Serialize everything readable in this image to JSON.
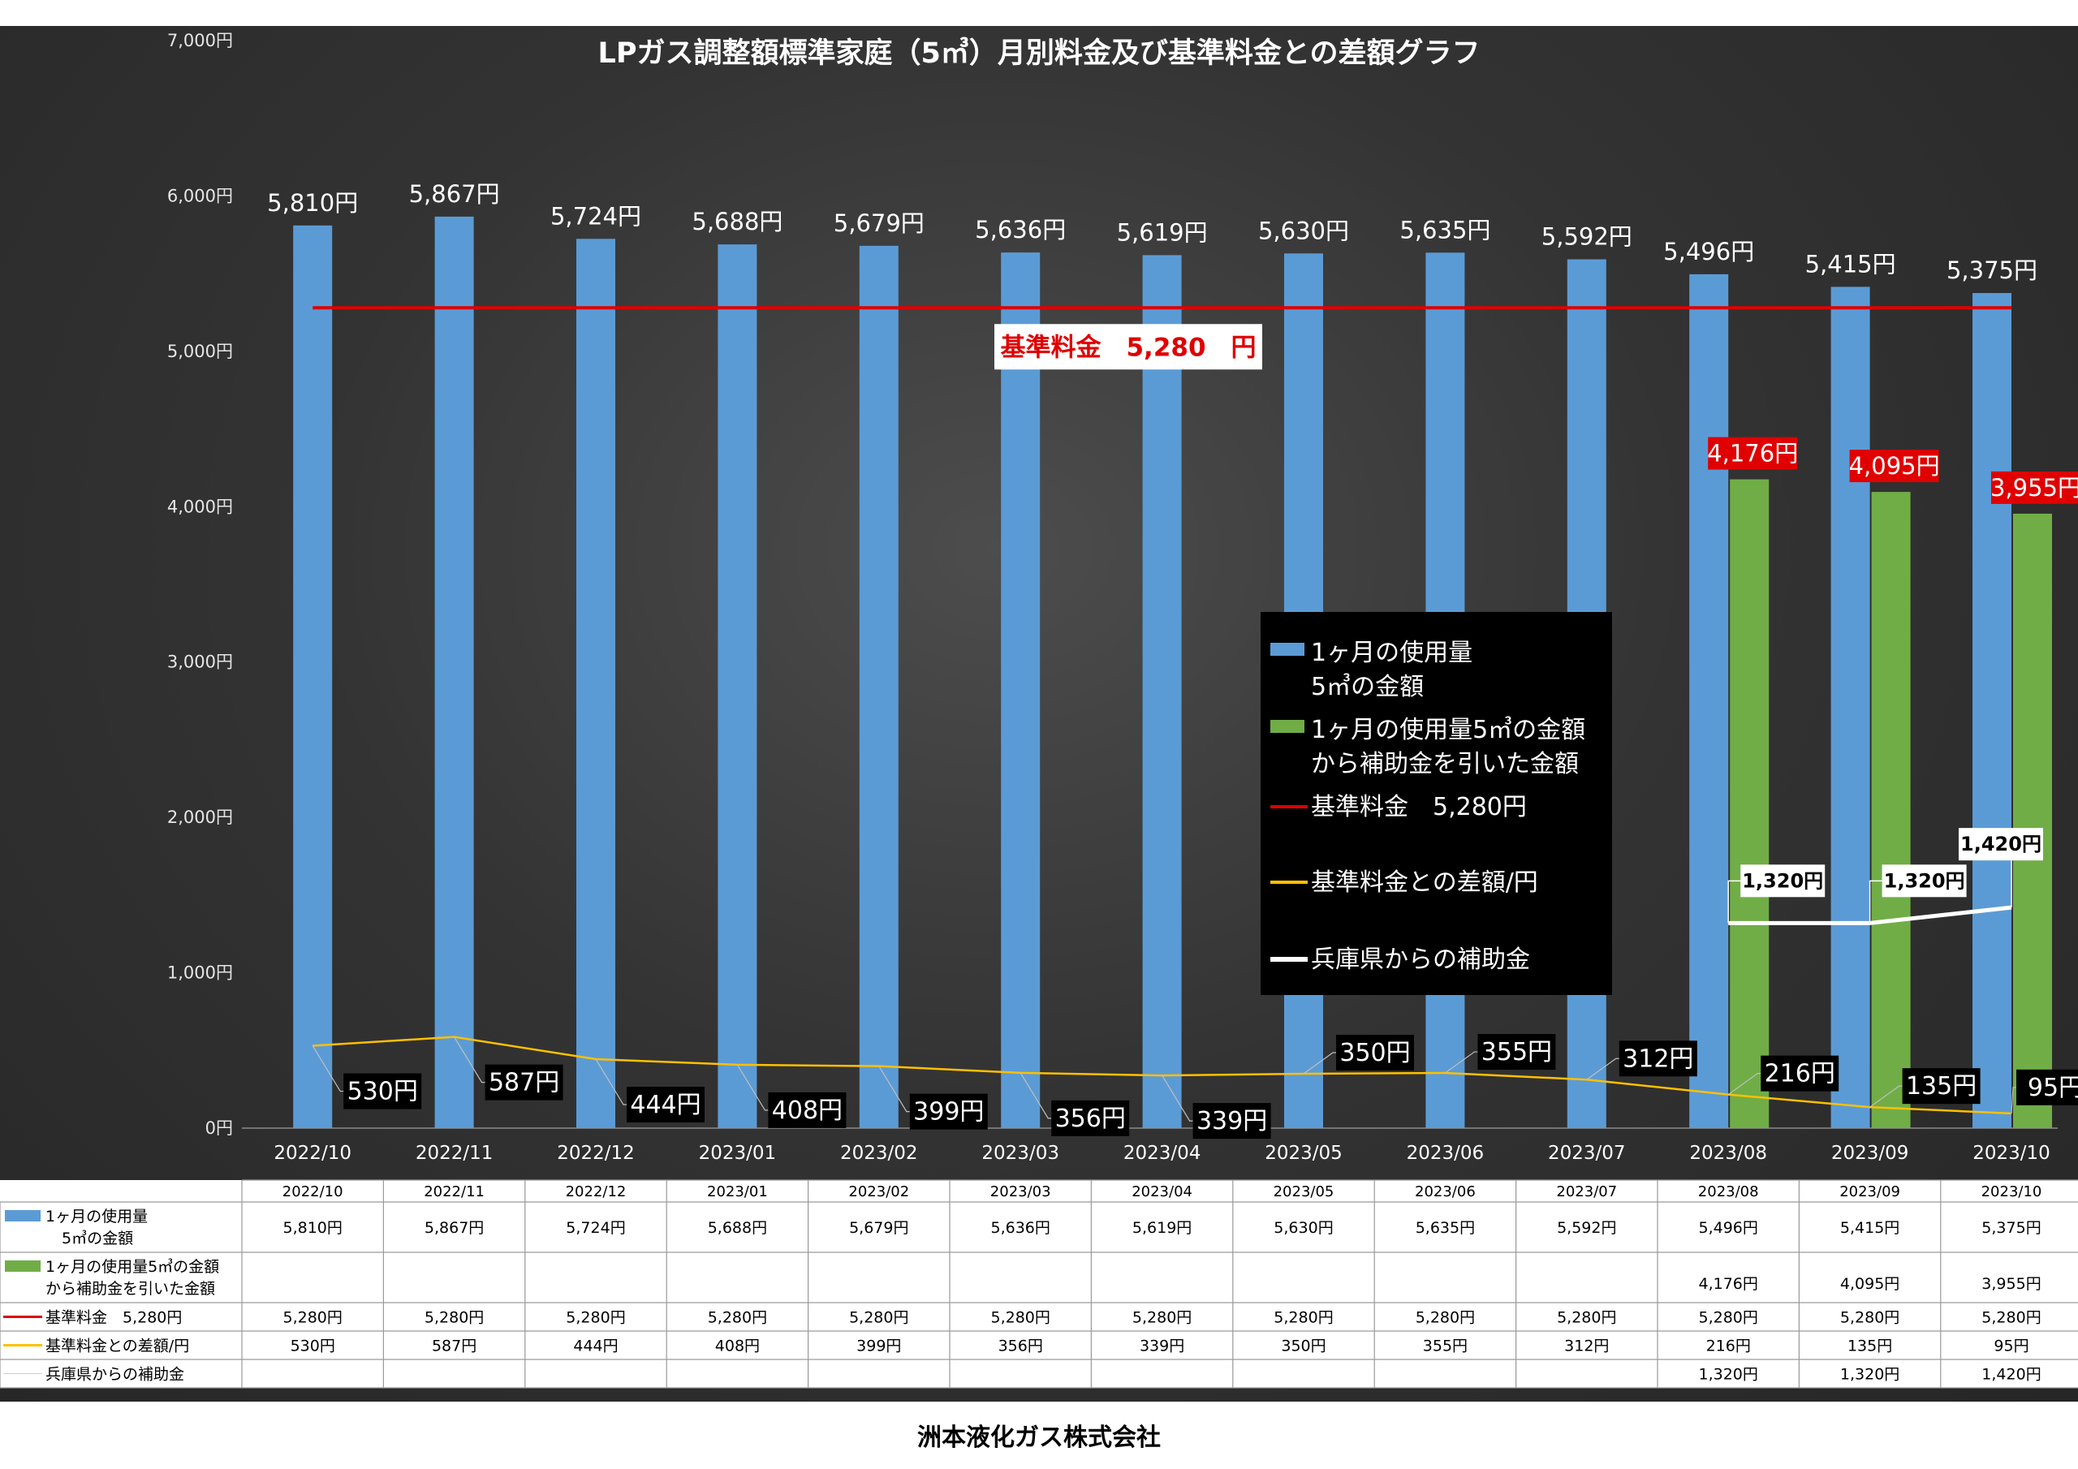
{
  "title": "LPガス調整額標準家庭（5㎥）月別料金及び基準料金との差額グラフ",
  "company": "洲本液化ガス株式会社",
  "chart_data": {
    "type": "bar",
    "categories": [
      "2022/10",
      "2022/11",
      "2022/12",
      "2023/01",
      "2023/02",
      "2023/03",
      "2023/04",
      "2023/05",
      "2023/06",
      "2023/07",
      "2023/08",
      "2023/09",
      "2023/10"
    ],
    "ylim": [
      0,
      7000
    ],
    "yticks": [
      "0円",
      "1,000円",
      "2,000円",
      "3,000円",
      "4,000円",
      "5,000円",
      "6,000円",
      "7,000円"
    ],
    "series": [
      {
        "key": "usage",
        "name": "1ヶ月の使用量\n5㎥の金額",
        "type": "bar",
        "color": "#5b9bd5",
        "values": [
          5810,
          5867,
          5724,
          5688,
          5679,
          5636,
          5619,
          5630,
          5635,
          5592,
          5496,
          5415,
          5375
        ],
        "labels": [
          "5,810円",
          "5,867円",
          "5,724円",
          "5,688円",
          "5,679円",
          "5,636円",
          "5,619円",
          "5,630円",
          "5,635円",
          "5,592円",
          "5,496円",
          "5,415円",
          "5,375円"
        ]
      },
      {
        "key": "subsidized",
        "name": "1ヶ月の使用量5㎥の金額\nから補助金を引いた金額",
        "type": "bar",
        "color": "#70ad47",
        "values": [
          null,
          null,
          null,
          null,
          null,
          null,
          null,
          null,
          null,
          null,
          4176,
          4095,
          3955
        ],
        "labels": [
          "",
          "",
          "",
          "",
          "",
          "",
          "",
          "",
          "",
          "",
          "4,176円",
          "4,095円",
          "3,955円"
        ]
      },
      {
        "key": "base",
        "name": "基準料金　5,280円",
        "type": "line",
        "color": "#e00000",
        "values": [
          5280,
          5280,
          5280,
          5280,
          5280,
          5280,
          5280,
          5280,
          5280,
          5280,
          5280,
          5280,
          5280
        ],
        "labels": [
          "5,280円",
          "5,280円",
          "5,280円",
          "5,280円",
          "5,280円",
          "5,280円",
          "5,280円",
          "5,280円",
          "5,280円",
          "5,280円",
          "5,280円",
          "5,280円",
          "5,280円"
        ]
      },
      {
        "key": "diff",
        "name": "基準料金との差額/円",
        "type": "line",
        "color": "#ffc000",
        "values": [
          530,
          587,
          444,
          408,
          399,
          356,
          339,
          350,
          355,
          312,
          216,
          135,
          95
        ],
        "labels": [
          "530円",
          "587円",
          "444円",
          "408円",
          "399円",
          "356円",
          "339円",
          "350円",
          "355円",
          "312円",
          "216円",
          "135円",
          "95円"
        ]
      },
      {
        "key": "hyogo",
        "name": "兵庫県からの補助金",
        "type": "line",
        "color": "#ffffff",
        "values": [
          null,
          null,
          null,
          null,
          null,
          null,
          null,
          null,
          null,
          null,
          1320,
          1320,
          1420
        ],
        "labels": [
          "",
          "",
          "",
          "",
          "",
          "",
          "",
          "",
          "",
          "",
          "1,320円",
          "1,320円",
          "1,420円"
        ]
      }
    ],
    "base_annotation": "基準料金　5,280　円",
    "legend_position": "center-right",
    "grid": false
  },
  "table_row_labels": [
    "1ヶ月の使用量\n5㎥の金額",
    "1ヶ月の使用量5㎥の金額\nから補助金を引いた金額",
    "基準料金　5,280円",
    "基準料金との差額/円",
    "兵庫県からの補助金"
  ]
}
